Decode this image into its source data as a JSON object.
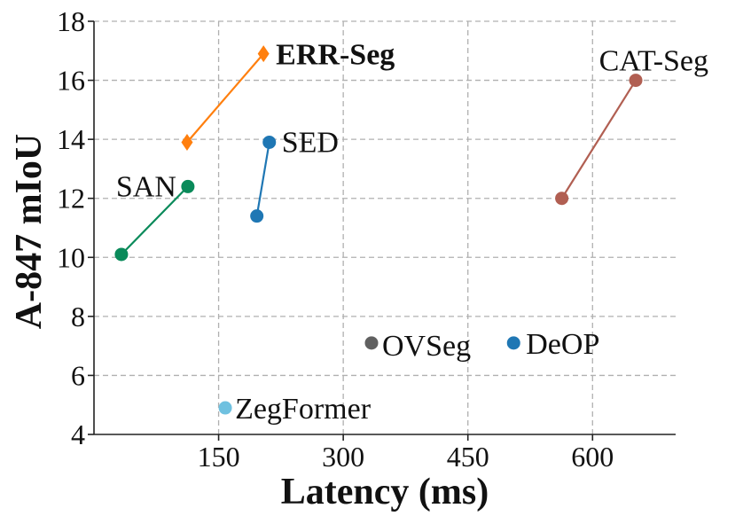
{
  "chart_data": {
    "type": "scatter",
    "xlabel": "Latency (ms)",
    "ylabel": "A-847 mIoU",
    "xlim": [
      0,
      700
    ],
    "ylim": [
      4,
      18
    ],
    "xticks": [
      150,
      300,
      450,
      600
    ],
    "yticks": [
      4,
      6,
      8,
      10,
      12,
      14,
      16,
      18
    ],
    "grid": true,
    "series": [
      {
        "name": "ERR-Seg",
        "label": "ERR-Seg",
        "bold": true,
        "color": "#ff7f0e",
        "marker": "diamond",
        "points": [
          {
            "x": 112,
            "y": 13.9
          },
          {
            "x": 204,
            "y": 16.9
          }
        ]
      },
      {
        "name": "CAT-Seg",
        "label": "CAT-Seg",
        "bold": false,
        "color": "#b15f52",
        "marker": "circle",
        "points": [
          {
            "x": 563,
            "y": 12.0
          },
          {
            "x": 652,
            "y": 16.0
          }
        ]
      },
      {
        "name": "SED",
        "label": "SED",
        "bold": false,
        "color": "#1f77b4",
        "marker": "circle",
        "points": [
          {
            "x": 196,
            "y": 11.4
          },
          {
            "x": 211,
            "y": 13.9
          }
        ]
      },
      {
        "name": "SAN",
        "label": "SAN",
        "bold": false,
        "color": "#0a8a5a",
        "marker": "circle",
        "points": [
          {
            "x": 33,
            "y": 10.1
          },
          {
            "x": 113,
            "y": 12.4
          }
        ]
      },
      {
        "name": "OVSeg",
        "label": "OVSeg",
        "bold": false,
        "color": "#606060",
        "marker": "circle",
        "points": [
          {
            "x": 334,
            "y": 7.1
          }
        ]
      },
      {
        "name": "DeOP",
        "label": "DeOP",
        "bold": false,
        "color": "#1f77b4",
        "marker": "circle",
        "points": [
          {
            "x": 505,
            "y": 7.1
          }
        ]
      },
      {
        "name": "ZegFormer",
        "label": "ZegFormer",
        "bold": false,
        "color": "#6fc1e0",
        "marker": "circle",
        "points": [
          {
            "x": 158,
            "y": 4.9
          }
        ]
      }
    ]
  }
}
